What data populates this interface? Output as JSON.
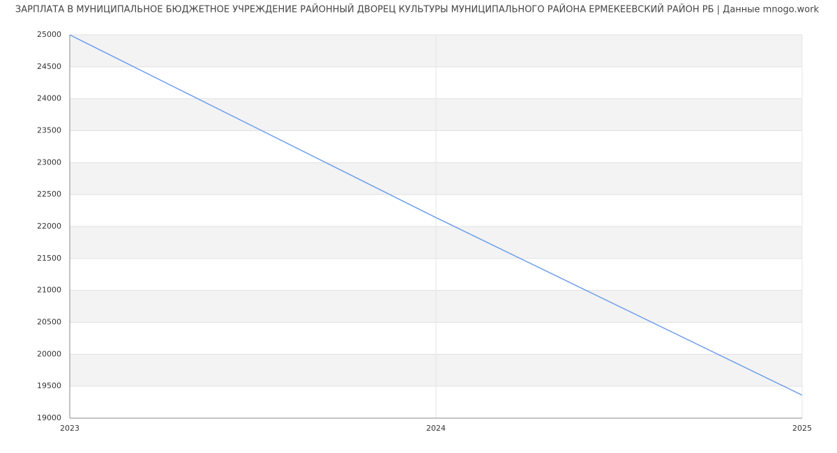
{
  "chart_data": {
    "type": "line",
    "title": "ЗАРПЛАТА В МУНИЦИПАЛЬНОЕ БЮДЖЕТНОЕ УЧРЕЖДЕНИЕ РАЙОННЫЙ ДВОРЕЦ КУЛЬТУРЫ МУНИЦИПАЛЬНОГО РАЙОНА ЕРМЕКЕЕВСКИЙ РАЙОН РБ | Данные mnogo.work",
    "x": [
      2023,
      2024,
      2025
    ],
    "series": [
      {
        "color": "#6d9eeb",
        "values": [
          25000,
          22140,
          19360
        ]
      }
    ],
    "xlim": [
      2023,
      2025
    ],
    "xticks": [
      2023,
      2024,
      2025
    ],
    "ylim": [
      19000,
      25000
    ],
    "yticks": [
      19000,
      19500,
      20000,
      20500,
      21000,
      21500,
      22000,
      22500,
      23000,
      23500,
      24000,
      24500,
      25000
    ],
    "grid": true
  }
}
